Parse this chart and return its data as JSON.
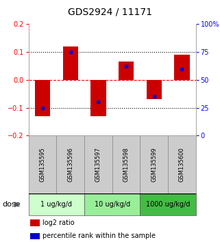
{
  "title": "GDS2924 / 11171",
  "samples": [
    "GSM135595",
    "GSM135596",
    "GSM135597",
    "GSM135598",
    "GSM135599",
    "GSM135600"
  ],
  "log2_ratios": [
    -0.13,
    0.12,
    -0.13,
    0.065,
    -0.07,
    0.09
  ],
  "percentile_ranks": [
    0.25,
    0.75,
    0.3,
    0.62,
    0.35,
    0.6
  ],
  "ylim_left": [
    -0.2,
    0.2
  ],
  "ylim_right": [
    0,
    100
  ],
  "yticks_left": [
    -0.2,
    -0.1,
    0,
    0.1,
    0.2
  ],
  "yticks_right": [
    0,
    25,
    50,
    75,
    100
  ],
  "dose_groups": [
    {
      "label": "1 ug/kg/d",
      "samples": [
        0,
        1
      ],
      "color": "#ccffcc"
    },
    {
      "label": "10 ug/kg/d",
      "samples": [
        2,
        3
      ],
      "color": "#99ee99"
    },
    {
      "label": "1000 ug/kg/d",
      "samples": [
        4,
        5
      ],
      "color": "#44bb44"
    }
  ],
  "bar_color_red": "#cc0000",
  "dot_color_blue": "#0000cc",
  "bar_width": 0.55,
  "title_fontsize": 10,
  "tick_fontsize": 7,
  "sample_fontsize": 6,
  "dose_fontsize": 7,
  "legend_fontsize": 7,
  "legend_items": [
    {
      "color": "#cc0000",
      "label": "log2 ratio"
    },
    {
      "color": "#0000cc",
      "label": "percentile rank within the sample"
    }
  ]
}
